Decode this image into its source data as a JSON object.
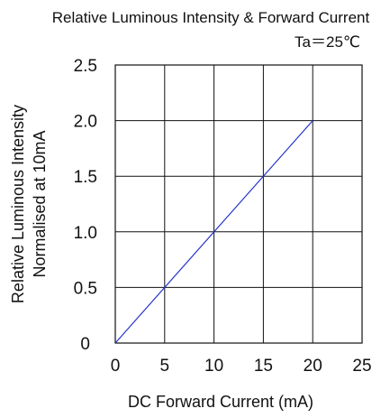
{
  "chart_data": {
    "type": "line",
    "title": "Relative Luminous Intensity & Forward Current",
    "condition": "Ta＝25℃",
    "xlabel": "DC Forward Current (mA)",
    "ylabel_lines": [
      "Relative Luminous Intensity",
      "Normalised at 10mA"
    ],
    "xlim": [
      0,
      25
    ],
    "ylim": [
      0,
      2.5
    ],
    "x_ticks": [
      "0",
      "5",
      "10",
      "15",
      "20",
      "25"
    ],
    "y_ticks": [
      "0",
      "0.5",
      "1.0",
      "1.5",
      "2.0",
      "2.5"
    ],
    "grid": true,
    "series": [
      {
        "x": [
          0,
          20
        ],
        "y": [
          0,
          2.0
        ],
        "color": "#2233cc"
      }
    ]
  }
}
